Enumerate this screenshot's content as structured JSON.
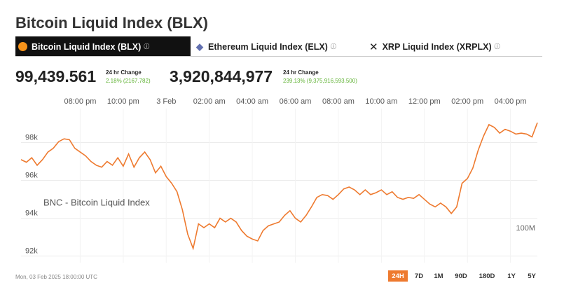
{
  "header": {
    "title": "Bitcoin Liquid Index (BLX)"
  },
  "tabs": [
    "Bitcoin Liquid Index (BLX)",
    "Ethereum Liquid Index (ELX)",
    "XRP Liquid Index (XRPLX)"
  ],
  "stats": [
    {
      "value": "99,439.561",
      "change_label": "24 hr Change",
      "change": "2.18% (2167.782)"
    },
    {
      "value": "3,920,844,977",
      "change_label": "24 hr Change",
      "change": "239.13% (9,375,916,593.500)"
    }
  ],
  "chart_data": {
    "type": "line",
    "annotation": "BNC - Bitcoin Liquid Index",
    "volume_label": "100M",
    "color": "#ee7a2f",
    "grid": true,
    "values": [
      97100,
      96960,
      97200,
      96800,
      97100,
      97500,
      97700,
      98050,
      98200,
      98150,
      97700,
      97500,
      97300,
      97000,
      96800,
      96700,
      97000,
      96800,
      97200,
      96750,
      97400,
      96700,
      97200,
      97500,
      97100,
      96400,
      96750,
      96200,
      95850,
      95400,
      94450,
      93150,
      92400,
      93700,
      93500,
      93700,
      93500,
      94000,
      93800,
      94000,
      93800,
      93350,
      93050,
      92900,
      92800,
      93350,
      93600,
      93700,
      93800,
      94150,
      94400,
      94000,
      93800,
      94150,
      94600,
      95100,
      95250,
      95200,
      95000,
      95250,
      95550,
      95650,
      95500,
      95250,
      95500,
      95250,
      95350,
      95500,
      95250,
      95400,
      95100,
      95000,
      95100,
      95050,
      95250,
      95000,
      94750,
      94600,
      94800,
      94600,
      94250,
      94600,
      95850,
      96100,
      96650,
      97600,
      98350,
      98950,
      98800,
      98500,
      98700,
      98600,
      98450,
      98500,
      98450,
      98300,
      99050
    ],
    "xlim": [
      0,
      96
    ],
    "xticks": [
      {
        "value": 11,
        "label": "08:00 pm"
      },
      {
        "value": 19,
        "label": "10:00 pm"
      },
      {
        "value": 27,
        "label": "3 Feb"
      },
      {
        "value": 35,
        "label": "02:00 am"
      },
      {
        "value": 43,
        "label": "04:00 am"
      },
      {
        "value": 51,
        "label": "06:00 am"
      },
      {
        "value": 59,
        "label": "08:00 am"
      },
      {
        "value": 67,
        "label": "10:00 am"
      },
      {
        "value": 75,
        "label": "12:00 pm"
      },
      {
        "value": 83,
        "label": "02:00 pm"
      },
      {
        "value": 91,
        "label": "04:00 pm"
      }
    ],
    "ylim": [
      91650,
      99600
    ],
    "yticks": [
      {
        "value": 92000,
        "label": "92k"
      },
      {
        "value": 94000,
        "label": "94k"
      },
      {
        "value": 96000,
        "label": "96k"
      },
      {
        "value": 98000,
        "label": "98k"
      }
    ]
  },
  "footer": {
    "timestamp": "Mon, 03 Feb 2025 18:00:00 UTC"
  },
  "ranges": [
    "24H",
    "7D",
    "1M",
    "90D",
    "180D",
    "1Y",
    "5Y"
  ]
}
